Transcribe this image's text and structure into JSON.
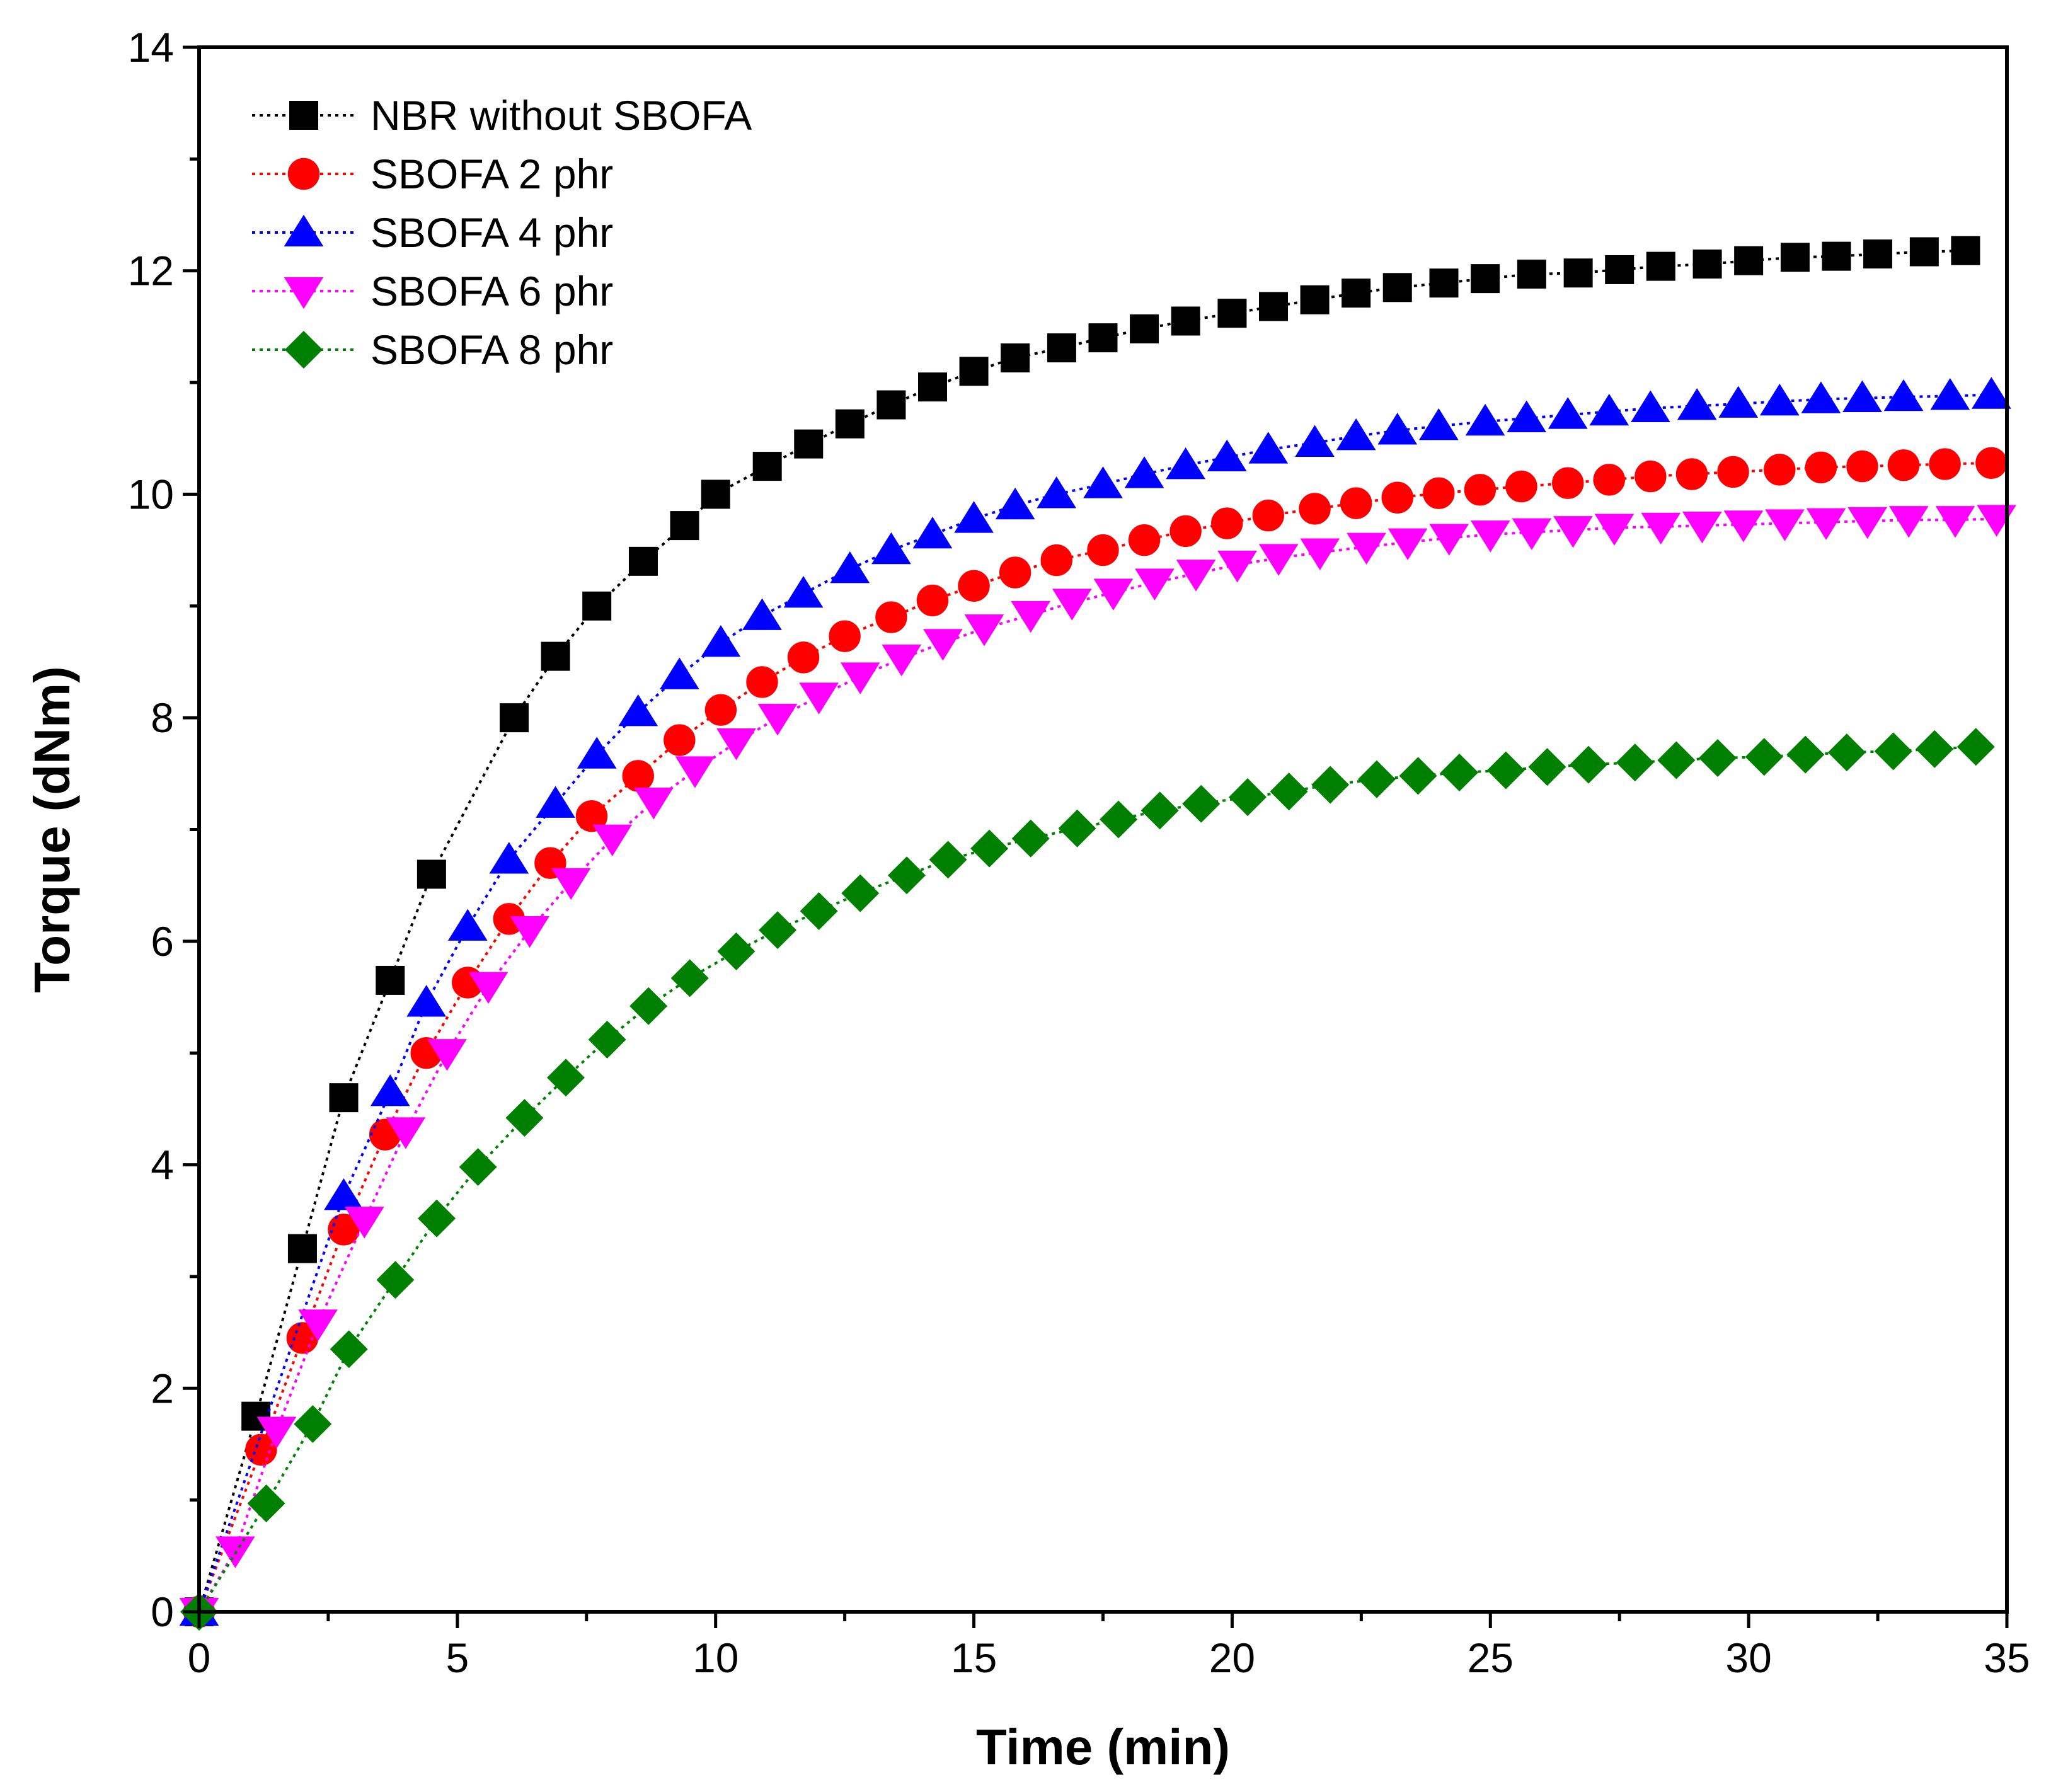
{
  "chart_data": {
    "type": "line",
    "title": "",
    "xlabel": "Time (min)",
    "ylabel": "Torque (dNm)",
    "xlim": [
      0,
      35
    ],
    "ylim": [
      0,
      14
    ],
    "xticks": [
      "0",
      "5",
      "10",
      "15",
      "20",
      "25",
      "30",
      "35"
    ],
    "yticks": [
      "0",
      "2",
      "4",
      "6",
      "8",
      "10",
      "12",
      "14"
    ],
    "grid": false,
    "legend_position": "top-left",
    "series": [
      {
        "name": "NBR without SBOFA",
        "color": "#000000",
        "marker": "square",
        "x": [
          0,
          1.1,
          2,
          2.8,
          3.7,
          4.5,
          6.1,
          6.9,
          7.7,
          8.6,
          9.4,
          10,
          11,
          11.8,
          12.6,
          13.4,
          14.2,
          15,
          15.8,
          16.7,
          17.5,
          18.3,
          19.1,
          20,
          20.8,
          21.6,
          22.4,
          23.2,
          24.1,
          24.9,
          25.8,
          26.7,
          27.5,
          28.3,
          29.2,
          30,
          30.9,
          31.7,
          32.5,
          33.4,
          34.2
        ],
        "y": [
          0,
          1.75,
          3.25,
          4.6,
          5.65,
          6.6,
          8.0,
          8.55,
          9.0,
          9.4,
          9.72,
          10.0,
          10.25,
          10.45,
          10.63,
          10.8,
          10.96,
          11.1,
          11.22,
          11.31,
          11.4,
          11.48,
          11.55,
          11.62,
          11.68,
          11.74,
          11.8,
          11.85,
          11.89,
          11.93,
          11.97,
          11.98,
          12.01,
          12.04,
          12.06,
          12.09,
          12.12,
          12.13,
          12.15,
          12.17,
          12.18
        ]
      },
      {
        "name": "SBOFA 2 phr",
        "color": "#ff0000",
        "marker": "circle",
        "x": [
          0,
          1.2,
          2,
          2.8,
          3.6,
          4.4,
          5.2,
          6,
          6.8,
          7.6,
          8.5,
          9.3,
          10.1,
          10.9,
          11.7,
          12.5,
          13.4,
          14.2,
          15,
          15.8,
          16.6,
          17.5,
          18.3,
          19.1,
          19.9,
          20.7,
          21.6,
          22.4,
          23.2,
          24,
          24.8,
          25.6,
          26.5,
          27.3,
          28.1,
          28.9,
          29.7,
          30.6,
          31.4,
          32.2,
          33,
          33.8,
          34.7
        ],
        "y": [
          0,
          1.45,
          2.45,
          3.42,
          4.27,
          5.0,
          5.63,
          6.2,
          6.7,
          7.12,
          7.48,
          7.8,
          8.07,
          8.32,
          8.54,
          8.73,
          8.9,
          9.05,
          9.18,
          9.3,
          9.41,
          9.5,
          9.59,
          9.67,
          9.74,
          9.81,
          9.87,
          9.92,
          9.97,
          10.01,
          10.04,
          10.07,
          10.1,
          10.13,
          10.16,
          10.18,
          10.2,
          10.22,
          10.24,
          10.25,
          10.26,
          10.27,
          10.28
        ]
      },
      {
        "name": "SBOFA 4 phr",
        "color": "#0000ff",
        "marker": "triangle-up",
        "x": [
          0,
          2.8,
          3.7,
          4.4,
          5.2,
          6,
          6.9,
          7.7,
          8.5,
          9.3,
          10.1,
          10.9,
          11.7,
          12.6,
          13.4,
          14.2,
          15,
          15.8,
          16.6,
          17.5,
          18.3,
          19.1,
          19.9,
          20.7,
          21.6,
          22.4,
          23.2,
          24,
          24.9,
          25.7,
          26.5,
          27.3,
          28.1,
          29,
          29.8,
          30.6,
          31.4,
          32.2,
          33,
          33.9,
          34.7
        ],
        "y": [
          0,
          3.72,
          4.65,
          5.45,
          6.13,
          6.73,
          7.23,
          7.67,
          8.05,
          8.38,
          8.67,
          8.91,
          9.11,
          9.33,
          9.5,
          9.64,
          9.78,
          9.9,
          10.0,
          10.09,
          10.18,
          10.26,
          10.33,
          10.4,
          10.46,
          10.52,
          10.57,
          10.61,
          10.65,
          10.68,
          10.71,
          10.74,
          10.77,
          10.79,
          10.81,
          10.83,
          10.85,
          10.86,
          10.87,
          10.88,
          10.89
        ]
      },
      {
        "name": "SBOFA 6 phr",
        "color": "#ff00ff",
        "marker": "triangle-down",
        "x": [
          0,
          0.7,
          1.5,
          2.3,
          3.2,
          4,
          4.8,
          5.6,
          6.4,
          7.2,
          8,
          8.8,
          9.6,
          10.4,
          11.2,
          12,
          12.8,
          13.6,
          14.4,
          15.2,
          16.1,
          16.9,
          17.7,
          18.5,
          19.3,
          20.1,
          20.9,
          21.7,
          22.6,
          23.4,
          24.2,
          25,
          25.8,
          26.6,
          27.4,
          28.3,
          29.1,
          29.9,
          30.7,
          31.5,
          32.3,
          33.1,
          34,
          34.8
        ],
        "y": [
          0,
          0.55,
          1.62,
          2.58,
          3.5,
          4.3,
          5.0,
          5.6,
          6.1,
          6.53,
          6.92,
          7.25,
          7.53,
          7.78,
          8.0,
          8.19,
          8.37,
          8.53,
          8.67,
          8.8,
          8.92,
          9.03,
          9.12,
          9.21,
          9.29,
          9.37,
          9.43,
          9.48,
          9.53,
          9.57,
          9.61,
          9.64,
          9.66,
          9.68,
          9.7,
          9.71,
          9.72,
          9.73,
          9.74,
          9.75,
          9.76,
          9.77,
          9.77,
          9.78
        ]
      },
      {
        "name": "SBOFA 8 phr",
        "color": "#008000",
        "marker": "diamond",
        "x": [
          0,
          1.3,
          2.2,
          2.9,
          3.8,
          4.6,
          5.4,
          6.3,
          7.1,
          7.9,
          8.7,
          9.5,
          10.4,
          11.2,
          12,
          12.8,
          13.7,
          14.5,
          15.3,
          16.1,
          17,
          17.8,
          18.6,
          19.4,
          20.3,
          21.1,
          21.9,
          22.8,
          23.6,
          24.4,
          25.3,
          26.1,
          26.9,
          27.8,
          28.6,
          29.4,
          30.3,
          31.1,
          31.9,
          32.8,
          33.6,
          34.4
        ],
        "y": [
          0,
          0.97,
          1.68,
          2.35,
          2.97,
          3.52,
          3.98,
          4.42,
          4.78,
          5.12,
          5.42,
          5.67,
          5.91,
          6.1,
          6.27,
          6.43,
          6.59,
          6.73,
          6.83,
          6.92,
          7.01,
          7.09,
          7.17,
          7.23,
          7.29,
          7.34,
          7.4,
          7.45,
          7.48,
          7.51,
          7.53,
          7.56,
          7.58,
          7.6,
          7.62,
          7.64,
          7.65,
          7.67,
          7.69,
          7.7,
          7.72,
          7.74
        ]
      }
    ]
  }
}
